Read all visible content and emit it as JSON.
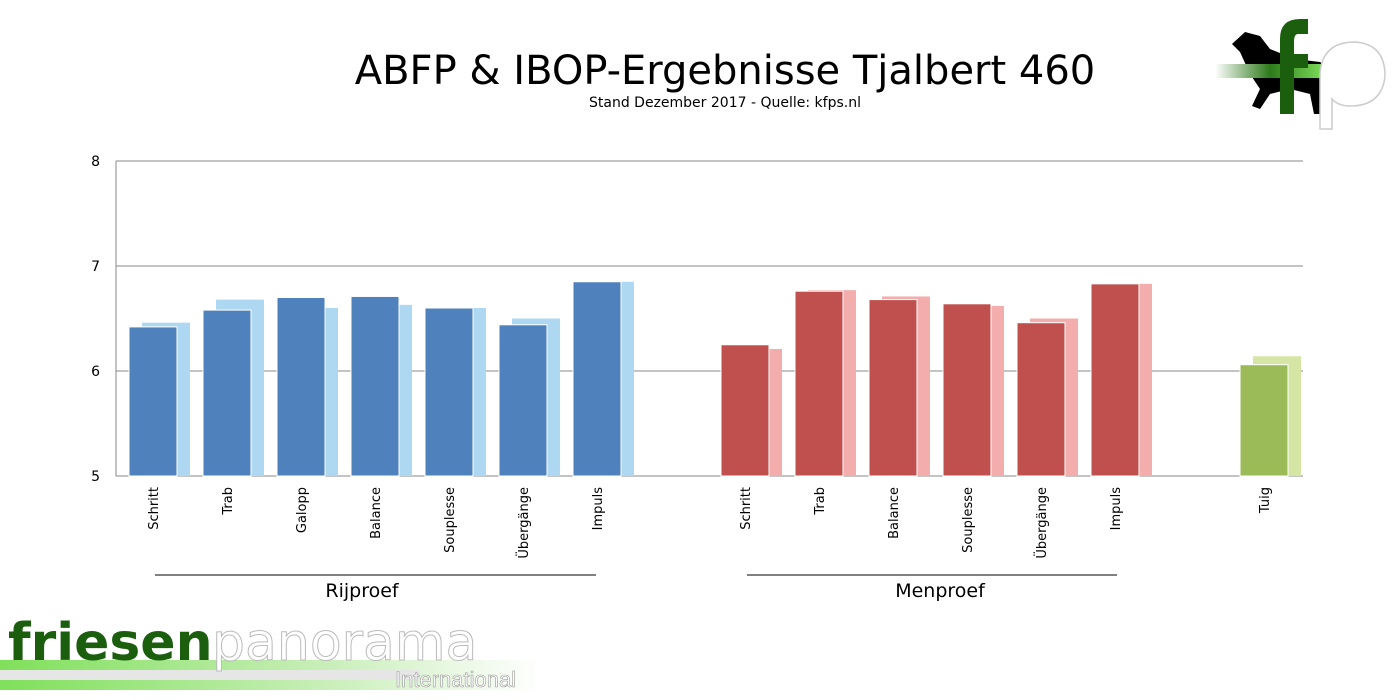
{
  "chart_data": {
    "type": "bar",
    "title": "ABFP & IBOP-Ergebnisse Tjalbert 460",
    "subtitle": "Stand Dezember 2017 - Quelle: kfps.nl",
    "ylim": [
      5,
      8
    ],
    "yticks": [
      "5",
      "6",
      "7",
      "8"
    ],
    "grid": true,
    "groups": [
      {
        "label": "Rijproef",
        "categories": [
          "Schritt",
          "Trab",
          "Galopp",
          "Balance",
          "Souplesse",
          "Übergänge",
          "Impuls"
        ],
        "values": [
          6.42,
          6.58,
          6.7,
          6.71,
          6.6,
          6.44,
          6.85
        ],
        "values_secondary": [
          6.46,
          6.68,
          6.6,
          6.63,
          6.6,
          6.5,
          6.85
        ],
        "color": "#4f81bd",
        "color_secondary": "#aed8f2"
      },
      {
        "label": "Menproef",
        "categories": [
          "Schritt",
          "Trab",
          "Balance",
          "Souplesse",
          "Übergänge",
          "Impuls"
        ],
        "values": [
          6.25,
          6.76,
          6.68,
          6.64,
          6.46,
          6.83
        ],
        "values_secondary": [
          6.21,
          6.77,
          6.71,
          6.62,
          6.5,
          6.83
        ],
        "color": "#c0504d",
        "color_secondary": "#f4adad"
      },
      {
        "label": "",
        "categories": [
          "Tuig"
        ],
        "values": [
          6.06
        ],
        "values_secondary": [
          6.14
        ],
        "color": "#9bbb59",
        "color_secondary": "#d4e5a4"
      }
    ]
  },
  "logos": {
    "top_right": "fp",
    "bottom_left_main": "friesenpanorama",
    "bottom_left_sub": "International"
  }
}
